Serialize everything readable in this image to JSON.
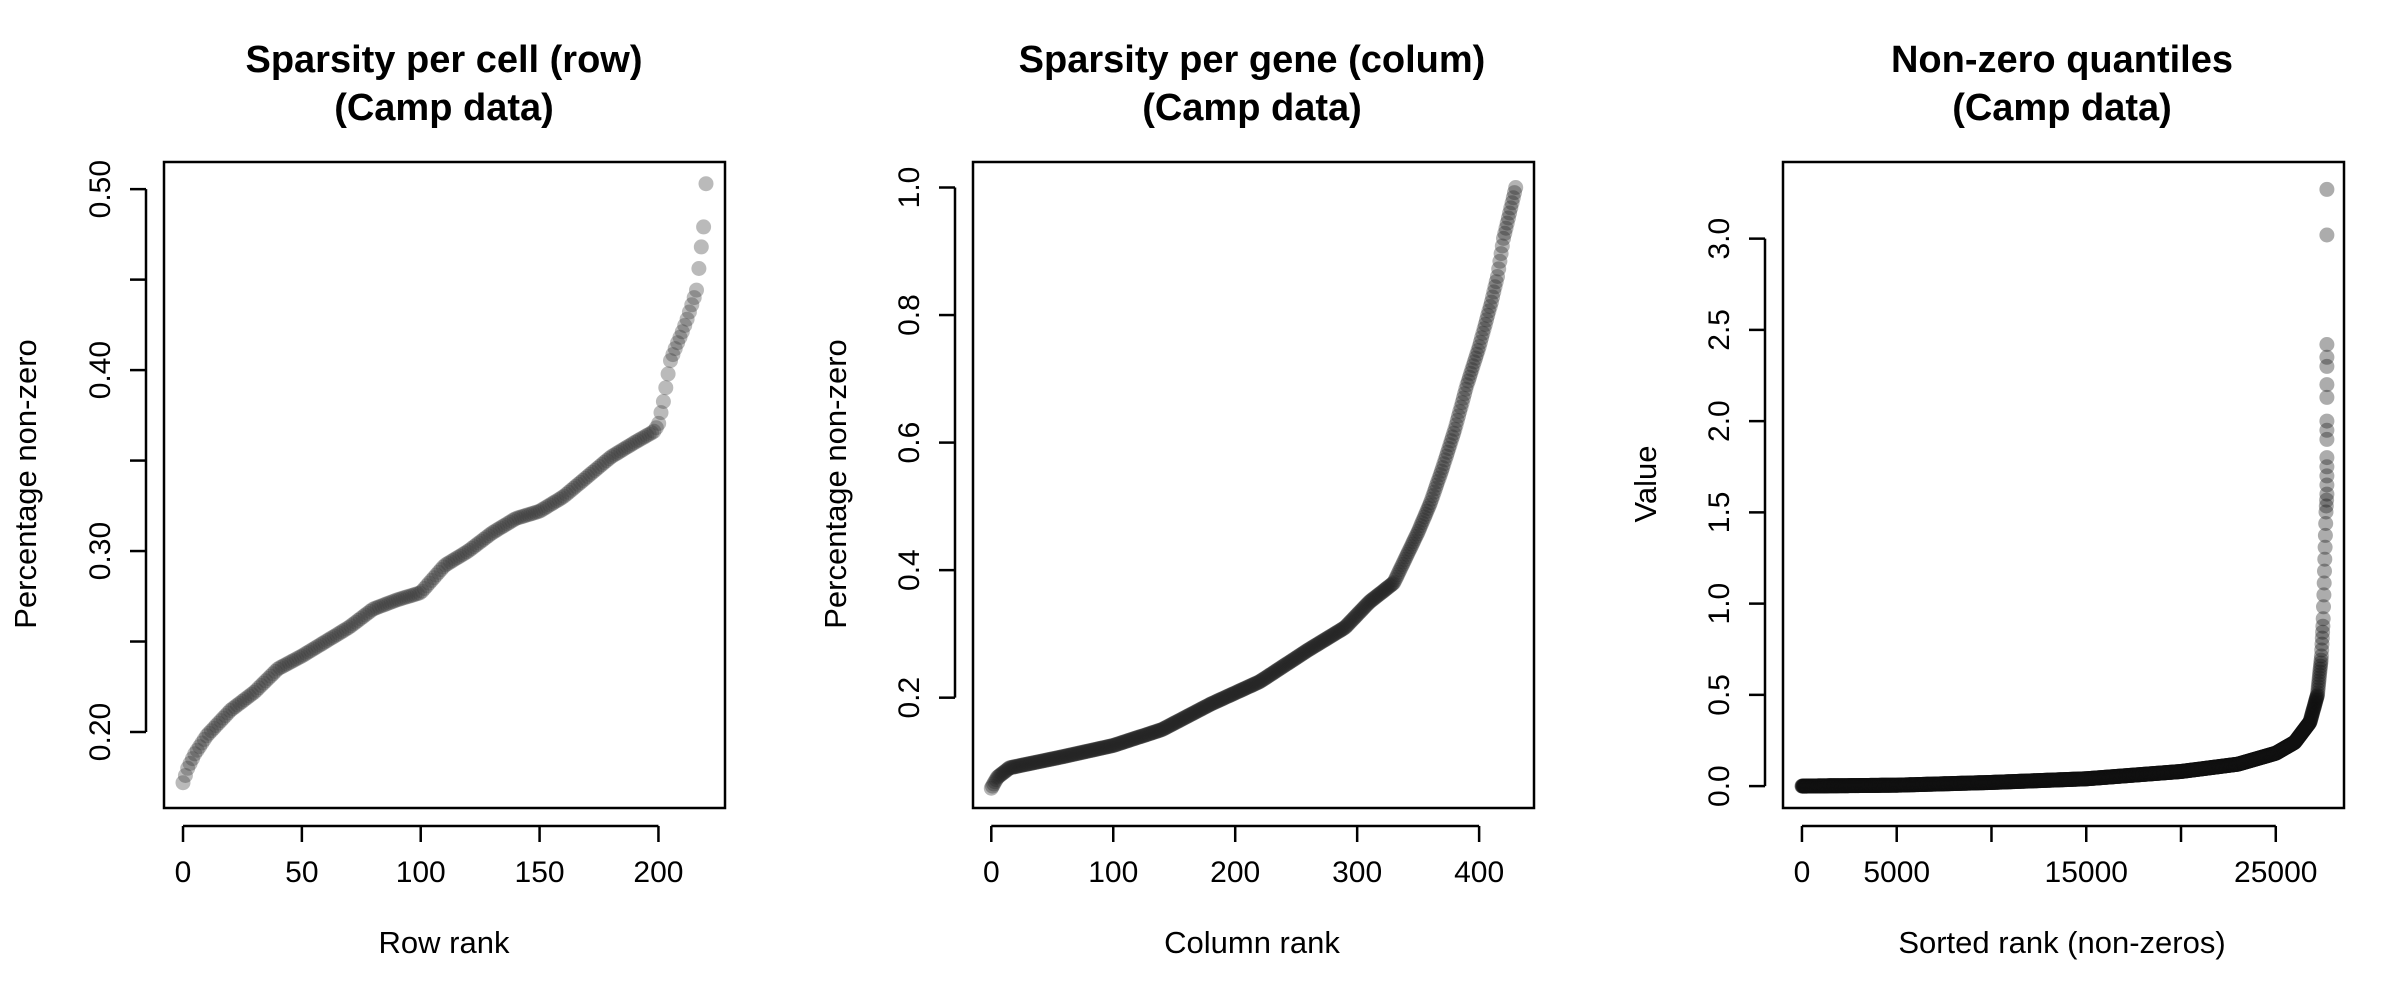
{
  "chart_data": [
    {
      "type": "scatter",
      "title_lines": [
        "Sparsity per cell (row)",
        "(Camp data)"
      ],
      "xlabel": "Row rank",
      "ylabel": "Percentage non-zero",
      "xlim": [
        -8,
        228
      ],
      "ylim": [
        0.158,
        0.515
      ],
      "x_ticks": [
        0,
        50,
        100,
        150,
        200
      ],
      "x_tick_labels": [
        "0",
        "50",
        "100",
        "150",
        "200"
      ],
      "y_ticks": [
        0.2,
        0.25,
        0.3,
        0.35,
        0.4,
        0.45,
        0.5
      ],
      "y_tick_labels": [
        "0.20",
        "",
        "0.30",
        "",
        "0.40",
        "",
        "0.50"
      ],
      "grid": false,
      "point_color": "#3a3a3a",
      "curve": {
        "x": [
          0,
          2,
          5,
          10,
          20,
          30,
          40,
          50,
          60,
          70,
          80,
          90,
          100,
          110,
          120,
          130,
          140,
          150,
          160,
          170,
          180,
          190,
          198,
          200,
          202,
          205,
          208,
          210,
          212,
          214,
          216,
          218,
          219,
          220
        ],
        "y": [
          0.172,
          0.18,
          0.188,
          0.198,
          0.212,
          0.222,
          0.235,
          0.242,
          0.25,
          0.258,
          0.268,
          0.273,
          0.277,
          0.292,
          0.3,
          0.31,
          0.318,
          0.322,
          0.33,
          0.341,
          0.352,
          0.36,
          0.366,
          0.37,
          0.382,
          0.405,
          0.415,
          0.421,
          0.428,
          0.436,
          0.444,
          0.468,
          0.479,
          0.503
        ]
      }
    },
    {
      "type": "scatter",
      "title_lines": [
        "Sparsity per gene (colum)",
        "(Camp data)"
      ],
      "xlabel": "Column rank",
      "ylabel": "Percentage non-zero",
      "xlim": [
        -15,
        445
      ],
      "ylim": [
        0.027,
        1.04
      ],
      "x_ticks": [
        0,
        100,
        200,
        300,
        400
      ],
      "x_tick_labels": [
        "0",
        "100",
        "200",
        "300",
        "400"
      ],
      "y_ticks": [
        0.2,
        0.4,
        0.6,
        0.8,
        1.0
      ],
      "y_tick_labels": [
        "0.2",
        "0.4",
        "0.6",
        "0.8",
        "1.0"
      ],
      "grid": false,
      "point_color": "#262626",
      "curve": {
        "x": [
          0,
          5,
          15,
          40,
          60,
          100,
          140,
          180,
          220,
          260,
          290,
          310,
          330,
          340,
          350,
          360,
          370,
          380,
          390,
          400,
          410,
          415,
          420,
          425,
          430
        ],
        "y": [
          0.058,
          0.075,
          0.09,
          0.1,
          0.108,
          0.125,
          0.15,
          0.19,
          0.225,
          0.275,
          0.31,
          0.35,
          0.38,
          0.42,
          0.46,
          0.505,
          0.56,
          0.62,
          0.69,
          0.75,
          0.82,
          0.86,
          0.92,
          0.96,
          1.0
        ]
      }
    },
    {
      "type": "scatter",
      "title_lines": [
        "Non-zero quantiles",
        "(Camp data)"
      ],
      "xlabel": "Sorted rank (non-zeros)",
      "ylabel": "Value",
      "xlim": [
        -1000,
        28600
      ],
      "ylim": [
        -0.12,
        3.42
      ],
      "x_ticks": [
        0,
        5000,
        10000,
        15000,
        20000,
        25000
      ],
      "x_tick_labels": [
        "0",
        "5000",
        "",
        "15000",
        "",
        "25000"
      ],
      "y_ticks": [
        0,
        0.5,
        1.0,
        1.5,
        2.0,
        2.5,
        3.0
      ],
      "y_tick_labels": [
        "0.0",
        "0.5",
        "1.0",
        "1.5",
        "2.0",
        "2.5",
        "3.0"
      ],
      "grid": false,
      "point_color": "#111111",
      "curve": {
        "x": [
          0,
          5000,
          10000,
          15000,
          20000,
          23000,
          25000,
          26000,
          26800,
          27200,
          27400,
          27500,
          27550,
          27600,
          27650,
          27700
        ],
        "y": [
          0,
          0.005,
          0.02,
          0.04,
          0.08,
          0.12,
          0.18,
          0.24,
          0.35,
          0.5,
          0.7,
          0.9,
          1.1,
          1.3,
          1.5,
          1.6
        ]
      },
      "outliers": {
        "x": [
          27700,
          27700,
          27700,
          27700,
          27700,
          27700,
          27700,
          27700,
          27700,
          27700,
          27700,
          27700,
          27700
        ],
        "y": [
          1.65,
          1.7,
          1.75,
          1.8,
          1.9,
          1.95,
          2.0,
          2.13,
          2.2,
          2.3,
          2.35,
          2.42,
          3.02
        ]
      },
      "top_point": {
        "x": 27700,
        "y": 3.27
      }
    }
  ]
}
